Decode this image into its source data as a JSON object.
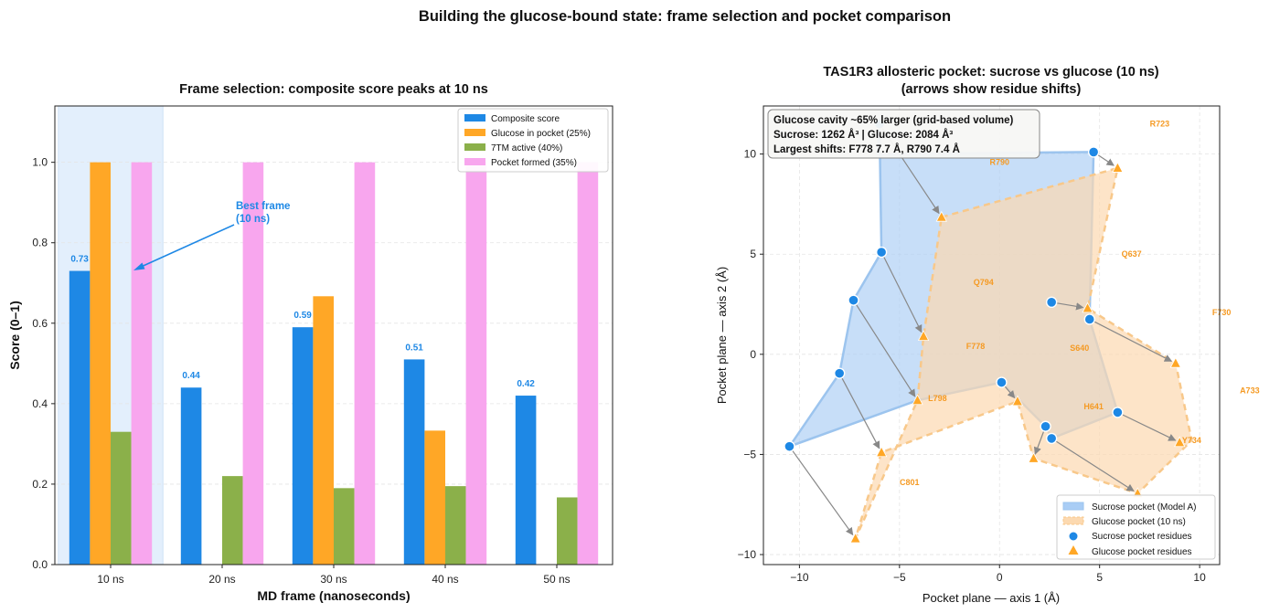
{
  "suptitle": "Building the glucose-bound state: frame selection and pocket comparison",
  "colors": {
    "composite": "#1e88e5",
    "glucose": "#ffa726",
    "tm7": "#8bb04a",
    "pocket": "#f8a6ee",
    "sucrose_pocket_fill": "#a9cdf5",
    "glucose_pocket_fill": "#fcd9b0",
    "highlight": "#e3effc",
    "annotation": "#1e88e5",
    "residue_label": "#f59a23",
    "arrow": "#888888"
  },
  "chart_data": [
    {
      "type": "bar",
      "title": "Frame selection: composite score peaks at 10 ns",
      "xlabel": "MD frame (nanoseconds)",
      "ylabel": "Score (0–1)",
      "categories": [
        "10 ns",
        "20 ns",
        "30 ns",
        "40 ns",
        "50 ns"
      ],
      "ylim": [
        0,
        1.14
      ],
      "yticks": [
        0.0,
        0.2,
        0.4,
        0.6,
        0.8,
        1.0
      ],
      "ytick_labels": [
        "0.0",
        "0.2",
        "0.4",
        "0.6",
        "0.8",
        "1.0"
      ],
      "grid": true,
      "legend_position": "top-right",
      "series": [
        {
          "name": "Composite score",
          "values": [
            0.73,
            0.44,
            0.59,
            0.51,
            0.42
          ]
        },
        {
          "name": "Glucose in pocket (25%)",
          "values": [
            1.0,
            0.0,
            0.667,
            0.333,
            0.0
          ]
        },
        {
          "name": "7TM active (40%)",
          "values": [
            0.33,
            0.22,
            0.19,
            0.195,
            0.167
          ]
        },
        {
          "name": "Pocket formed (35%)",
          "values": [
            1.0,
            1.0,
            1.0,
            1.0,
            1.0
          ]
        }
      ],
      "value_labels": [
        "0.73",
        "0.44",
        "0.59",
        "0.51",
        "0.42"
      ],
      "highlight_category": "10 ns",
      "annotation": {
        "text_line1": "Best frame",
        "text_line2": "(10 ns)"
      }
    },
    {
      "type": "scatter",
      "title_line1": "TAS1R3 allosteric pocket: sucrose vs glucose (10 ns)",
      "title_line2": "(arrows show residue shifts)",
      "xlabel": "Pocket plane — axis 1 (Å)",
      "ylabel": "Pocket plane — axis 2 (Å)",
      "xlim": [
        -11.8,
        11.0
      ],
      "ylim": [
        -10.5,
        12.4
      ],
      "xticks": [
        -10,
        -5,
        0,
        5,
        10
      ],
      "xtick_labels": [
        "−10",
        "−5",
        "0",
        "5",
        "10"
      ],
      "yticks": [
        -10,
        -5,
        0,
        5,
        10
      ],
      "ytick_labels": [
        "−10",
        "−5",
        "0",
        "5",
        "10"
      ],
      "grid": true,
      "legend_position": "lower-right",
      "info_box": {
        "line1": "Glucose cavity ~65% larger (grid-based volume)",
        "line2": "Sucrose: 1262 Å³  |  Glucose: 2084 Å³",
        "line3": "Largest shifts: F778 7.7 Å, R790 7.4 Å"
      },
      "legend": {
        "sucrose_pocket": "Sucrose pocket (Model A)",
        "glucose_pocket": "Glucose pocket (10 ns)",
        "sucrose_residues": "Sucrose pocket residues",
        "glucose_residues": "Glucose pocket residues"
      },
      "sucrose_points": [
        [
          -6.0,
          11.5
        ],
        [
          4.7,
          10.1
        ],
        [
          -5.9,
          5.1
        ],
        [
          -7.3,
          2.7
        ],
        [
          2.6,
          2.6
        ],
        [
          4.5,
          1.75
        ],
        [
          0.1,
          -1.4
        ],
        [
          5.9,
          -2.9
        ],
        [
          -8.0,
          -0.95
        ],
        [
          2.3,
          -3.6
        ],
        [
          2.6,
          -4.2
        ],
        [
          -10.5,
          -4.6
        ]
      ],
      "glucose_points": [
        [
          5.9,
          9.3
        ],
        [
          -2.9,
          6.85
        ],
        [
          4.4,
          2.3
        ],
        [
          -3.8,
          0.9
        ],
        [
          8.8,
          -0.45
        ],
        [
          -4.1,
          -2.3
        ],
        [
          0.9,
          -2.35
        ],
        [
          9.0,
          -4.4
        ],
        [
          -5.9,
          -4.9
        ],
        [
          1.7,
          -5.2
        ],
        [
          6.9,
          -6.95
        ],
        [
          -7.2,
          -9.2
        ]
      ],
      "sucrose_pocket_polygon": [
        [
          -6.0,
          11.5
        ],
        [
          -6.1,
          10.0
        ],
        [
          4.7,
          10.1
        ],
        [
          4.5,
          1.75
        ],
        [
          5.9,
          -2.9
        ],
        [
          2.6,
          -4.2
        ],
        [
          2.3,
          -3.6
        ],
        [
          0.1,
          -1.4
        ],
        [
          -4.1,
          -2.3
        ],
        [
          -10.5,
          -4.6
        ],
        [
          -8.0,
          -0.95
        ],
        [
          -7.3,
          2.7
        ],
        [
          -5.9,
          5.1
        ]
      ],
      "glucose_pocket_polygon": [
        [
          -2.9,
          6.85
        ],
        [
          5.9,
          9.3
        ],
        [
          4.4,
          2.3
        ],
        [
          8.8,
          -0.45
        ],
        [
          9.6,
          -4.3
        ],
        [
          6.9,
          -6.95
        ],
        [
          1.7,
          -5.2
        ],
        [
          0.9,
          -2.35
        ],
        [
          -5.9,
          -4.9
        ],
        [
          -7.2,
          -9.2
        ],
        [
          -4.1,
          -2.3
        ],
        [
          -3.8,
          0.9
        ]
      ],
      "shifts": [
        [
          [
            4.7,
            10.1
          ],
          [
            5.9,
            9.3
          ]
        ],
        [
          [
            -6.0,
            11.5
          ],
          [
            -2.9,
            6.85
          ]
        ],
        [
          [
            2.6,
            2.6
          ],
          [
            4.4,
            2.3
          ]
        ],
        [
          [
            -5.9,
            5.1
          ],
          [
            -3.8,
            0.9
          ]
        ],
        [
          [
            4.5,
            1.75
          ],
          [
            8.8,
            -0.45
          ]
        ],
        [
          [
            -7.3,
            2.7
          ],
          [
            -4.1,
            -2.3
          ]
        ],
        [
          [
            0.1,
            -1.4
          ],
          [
            0.9,
            -2.35
          ]
        ],
        [
          [
            5.9,
            -2.9
          ],
          [
            9.0,
            -4.4
          ]
        ],
        [
          [
            -8.0,
            -0.95
          ],
          [
            -5.9,
            -4.9
          ]
        ],
        [
          [
            2.3,
            -3.6
          ],
          [
            1.7,
            -5.2
          ]
        ],
        [
          [
            2.6,
            -4.2
          ],
          [
            6.9,
            -6.95
          ]
        ],
        [
          [
            -10.5,
            -4.6
          ],
          [
            -7.2,
            -9.2
          ]
        ]
      ],
      "residue_labels": [
        {
          "text": "R723",
          "x": 8.0,
          "y": 11.5
        },
        {
          "text": "R790",
          "x": 0.0,
          "y": 9.6
        },
        {
          "text": "Q637",
          "x": 6.6,
          "y": 5.0
        },
        {
          "text": "Q794",
          "x": -0.8,
          "y": 3.6
        },
        {
          "text": "F730",
          "x": 11.1,
          "y": 2.1
        },
        {
          "text": "F778",
          "x": -1.2,
          "y": 0.4
        },
        {
          "text": "S640",
          "x": 4.0,
          "y": 0.3
        },
        {
          "text": "L798",
          "x": -3.1,
          "y": -2.2
        },
        {
          "text": "A733",
          "x": 12.5,
          "y": -1.8
        },
        {
          "text": "H641",
          "x": 4.7,
          "y": -2.6
        },
        {
          "text": "Y734",
          "x": 9.6,
          "y": -4.3
        },
        {
          "text": "C801",
          "x": -4.5,
          "y": -6.4
        }
      ]
    }
  ]
}
